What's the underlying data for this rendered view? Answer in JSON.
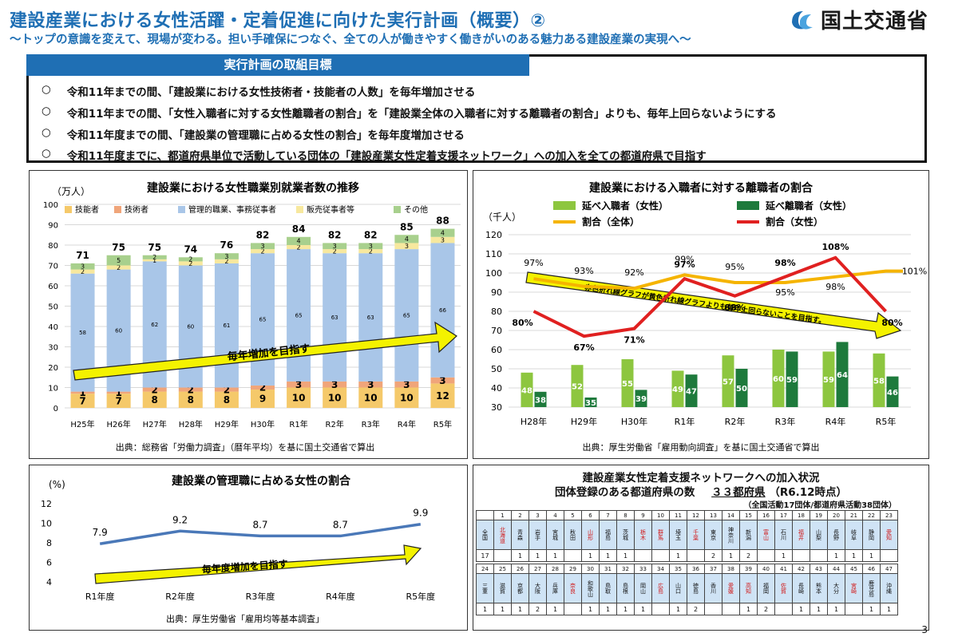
{
  "header": {
    "title": "建設産業における女性活躍・定着促進に向けた実行計画（概要）②",
    "subtitle": "～トップの意識を変えて、現場が変わる。担い手確保につなぐ、全ての人が働きやすく働きがいのある魅力ある建設産業の実現へ～",
    "logo_text": "国土交通省"
  },
  "goals": {
    "heading": "実行計画の取組目標",
    "bullet": "○",
    "items": [
      "令和11年までの間、「建設業における女性技術者・技能者の人数」を毎年増加させる",
      "令和11年までの間、「女性入職者に対する女性離職者の割合」を「建設業全体の入職者に対する離職者の割合」よりも、毎年上回らないようにする",
      "令和11年度までの間、「建設業の管理職に占める女性の割合」を毎年度増加させる",
      "令和11年度までに、都道府県単位で活動している団体の「建設産業女性定着支援ネットワーク」への加入を全ての都道府県で目指す"
    ]
  },
  "chart_data": [
    {
      "type": "bar",
      "title": "建設業における女性職業別就業者数の推移",
      "ylabel": "（万人）",
      "ylim": [
        0,
        100
      ],
      "categories": [
        "H25年",
        "H26年",
        "H27年",
        "H28年",
        "H29年",
        "H30年",
        "R1年",
        "R2年",
        "R3年",
        "R4年",
        "R5年"
      ],
      "series": [
        {
          "name": "技能者",
          "values": [
            7,
            7,
            8,
            8,
            8,
            9,
            10,
            10,
            10,
            10,
            12
          ],
          "color": "#f5c96a"
        },
        {
          "name": "技術者",
          "values": [
            1,
            1,
            2,
            2,
            2,
            2,
            3,
            3,
            3,
            3,
            3
          ],
          "color": "#f0a57a"
        },
        {
          "name": "管理的職業、事務従事者",
          "values": [
            58,
            60,
            62,
            60,
            61,
            65,
            65,
            63,
            63,
            65,
            66
          ],
          "color": "#a9c6e8"
        },
        {
          "name": "販売従事者等",
          "values": [
            2,
            2,
            1,
            2,
            2,
            2,
            2,
            2,
            2,
            3,
            3
          ],
          "color": "#f7e89e"
        },
        {
          "name": "その他",
          "values": [
            3,
            5,
            2,
            2,
            3,
            3,
            4,
            3,
            3,
            4,
            4
          ],
          "color": "#a8d08d"
        }
      ],
      "totals": [
        71,
        75,
        75,
        74,
        76,
        82,
        84,
        82,
        82,
        85,
        88
      ],
      "annotation": "毎年増加を目指す",
      "source": "出典：総務省「労働力調査」（暦年平均）を基に国土交通省で算出"
    },
    {
      "type": "bar",
      "title": "建設業における入職者に対する離職者の割合",
      "ylabel": "（千人）",
      "ylim": [
        30,
        120
      ],
      "categories": [
        "H28年",
        "H29年",
        "H30年",
        "R1年",
        "R2年",
        "R3年",
        "R4年",
        "R5年"
      ],
      "series": [
        {
          "name": "延べ入職者（女性）",
          "values": [
            48,
            52,
            55,
            49,
            57,
            60,
            59,
            58
          ],
          "color": "#8dc63f"
        },
        {
          "name": "延べ離職者（女性）",
          "values": [
            38,
            35,
            39,
            47,
            50,
            59,
            64,
            46
          ],
          "color": "#1e7a3c"
        },
        {
          "name": "割合（全体）",
          "values": [
            97,
            93,
            92,
            99,
            95,
            95,
            98,
            101
          ],
          "color": "#f5b400",
          "unit": "%"
        },
        {
          "name": "割合（女性）",
          "values": [
            80,
            67,
            71,
            97,
            88,
            98,
            108,
            80
          ],
          "color": "#e02020",
          "unit": "%"
        }
      ],
      "annotation": "赤色折れ線グラフが黄色折れ線グラフよりも毎年上回らないことを目指す。",
      "source": "出典：厚生労働省「雇用動向調査」を基に国土交通省で算出"
    },
    {
      "type": "line",
      "title": "建設業の管理職に占める女性の割合",
      "ylabel": "(%)",
      "ylim": [
        4,
        12
      ],
      "categories": [
        "R1年度",
        "R2年度",
        "R3年度",
        "R4年度",
        "R5年度"
      ],
      "series": [
        {
          "values": [
            7.9,
            9.2,
            8.7,
            8.7,
            9.9
          ],
          "color": "#4a78b8"
        }
      ],
      "annotation": "毎年度増加を目指す",
      "source": "出典：厚生労働省「雇用均等基本調査」"
    }
  ],
  "network": {
    "title": "建設産業女性定着支援ネットワークへの加入状況",
    "subtitle_prefix": "団体登録のある都道府県の数",
    "subtitle_value": "３３都府県",
    "subtitle_date": "（R6.12時点）",
    "note": "（全国活動17団体/都道府県活動38団体）",
    "row1_nums": [
      "",
      "1",
      "2",
      "3",
      "4",
      "5",
      "6",
      "7",
      "8",
      "9",
      "10",
      "11",
      "12",
      "13",
      "14",
      "15",
      "16",
      "17",
      "18",
      "19",
      "20",
      "21",
      "22",
      "23"
    ],
    "row1_prefs": [
      "全国",
      "北海道",
      "青森",
      "岩手",
      "宮城",
      "秋田",
      "山形",
      "福島",
      "茨城",
      "栃木",
      "群馬",
      "埼玉",
      "千葉",
      "東京",
      "神奈川",
      "新潟",
      "富山",
      "石川",
      "福井",
      "山梨",
      "長野",
      "岐阜",
      "静岡",
      "愛知"
    ],
    "row1_red": [
      1,
      6,
      9,
      10,
      12,
      16,
      18,
      23
    ],
    "row1_counts": [
      "17",
      "",
      "1",
      "1",
      "1",
      "",
      "1",
      "1",
      "1",
      "",
      "",
      "1",
      "",
      "2",
      "1",
      "2",
      "",
      "1",
      "",
      "",
      "1",
      "1",
      "1",
      ""
    ],
    "row2_nums": [
      "24",
      "25",
      "26",
      "27",
      "28",
      "29",
      "30",
      "31",
      "32",
      "33",
      "34",
      "35",
      "36",
      "37",
      "38",
      "39",
      "40",
      "41",
      "42",
      "43",
      "44",
      "45",
      "46",
      "47"
    ],
    "row2_prefs": [
      "三重",
      "滋賀",
      "京都",
      "大阪",
      "兵庫",
      "奈良",
      "和歌山",
      "鳥取",
      "島根",
      "岡山",
      "広島",
      "山口",
      "徳島",
      "香川",
      "愛媛",
      "高知",
      "福岡",
      "佐賀",
      "長崎",
      "熊本",
      "大分",
      "宮崎",
      "鹿児島",
      "沖縄"
    ],
    "row2_red": [
      5,
      10,
      14,
      15,
      17,
      21
    ],
    "row2_counts": [
      "1",
      "1",
      "1",
      "2",
      "1",
      "",
      "1",
      "1",
      "1",
      "1",
      "",
      "1",
      "2",
      "",
      "",
      "1",
      "2",
      "",
      "1",
      "1",
      "1",
      "",
      "1",
      "1"
    ]
  },
  "page_number": "3"
}
